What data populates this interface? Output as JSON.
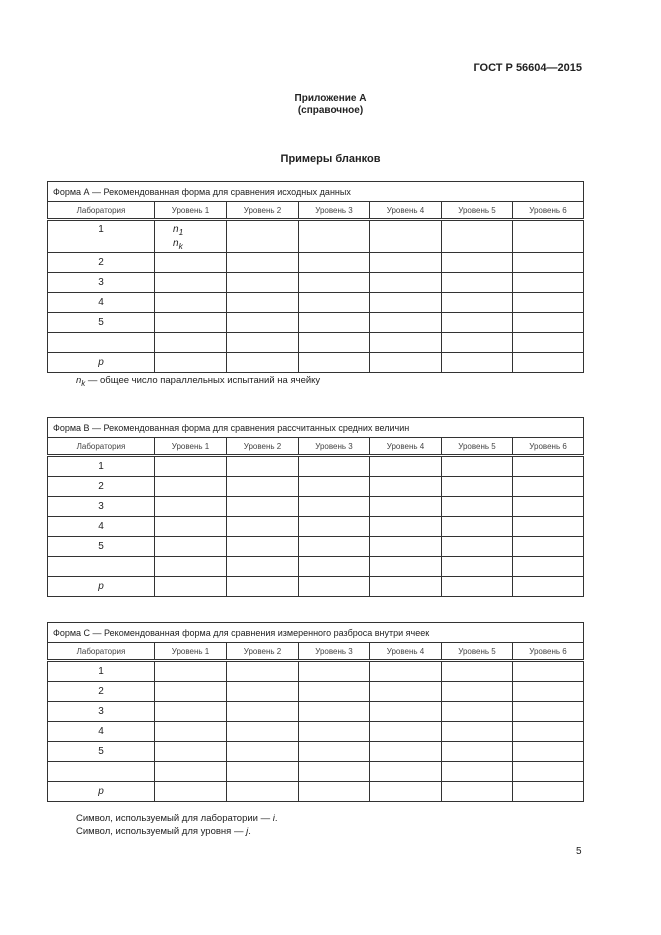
{
  "header": {
    "doc_id": "ГОСТ Р 56604—2015"
  },
  "annex": {
    "title": "Приложение А",
    "subtitle": "(справочное)"
  },
  "section_title": "Примеры бланков",
  "columns": [
    "Лаборатория",
    "Уровень 1",
    "Уровень 2",
    "Уровень 3",
    "Уровень 4",
    "Уровень 5",
    "Уровень 6"
  ],
  "rows": [
    "1",
    "2",
    "3",
    "4",
    "5",
    "",
    "p"
  ],
  "forms": [
    {
      "title": "Форма А — Рекомендованная форма для сравнения исходных данных",
      "cell_n1": "n",
      "cell_n1_sub": "1",
      "cell_nk": "n",
      "cell_nk_sub": "k"
    },
    {
      "title": "Форма В — Рекомендованная форма для сравнения рассчитанных средних величин"
    },
    {
      "title": "Форма С — Рекомендованная форма для сравнения измеренного разброса внутри ячеек"
    }
  ],
  "footnote_a": {
    "sym": "n",
    "sub": "k",
    "text": " — общее число параллельных испытаний на ячейку"
  },
  "notes": [
    {
      "text": "Символ, используемый для лаборатории — ",
      "sym": "i",
      "end": "."
    },
    {
      "text": "Символ, используемый для уровня — ",
      "sym": "j",
      "end": "."
    }
  ],
  "page_number": "5"
}
